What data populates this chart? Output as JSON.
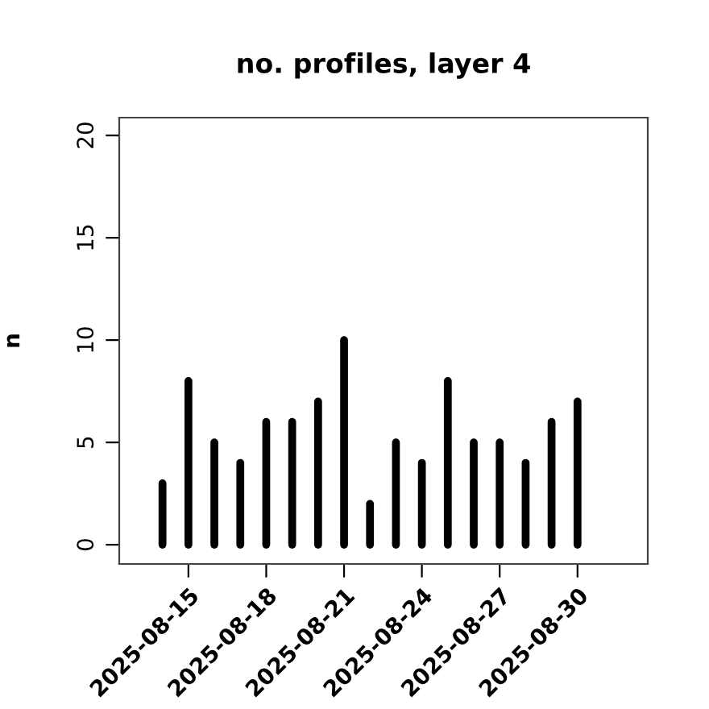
{
  "chart_data": {
    "type": "bar",
    "title": "no. profiles, layer 4",
    "ylabel": "n",
    "x": [
      "2025-08-14",
      "2025-08-15",
      "2025-08-16",
      "2025-08-17",
      "2025-08-18",
      "2025-08-19",
      "2025-08-20",
      "2025-08-21",
      "2025-08-22",
      "2025-08-23",
      "2025-08-24",
      "2025-08-25",
      "2025-08-26",
      "2025-08-27",
      "2025-08-28",
      "2025-08-29",
      "2025-08-30"
    ],
    "values": [
      3,
      8,
      5,
      4,
      6,
      6,
      7,
      10,
      2,
      5,
      4,
      8,
      5,
      5,
      4,
      6,
      7
    ],
    "color": "#000000",
    "xlim": [
      "2025-08-12T08:00",
      "2025-09-01T17:00"
    ],
    "xticks": [
      {
        "value": "2025-08-15",
        "label": "2025-08-15"
      },
      {
        "value": "2025-08-18",
        "label": "2025-08-18"
      },
      {
        "value": "2025-08-21",
        "label": "2025-08-21"
      },
      {
        "value": "2025-08-24",
        "label": "2025-08-24"
      },
      {
        "value": "2025-08-27",
        "label": "2025-08-27"
      },
      {
        "value": "2025-08-30",
        "label": "2025-08-30"
      }
    ],
    "ylim": [
      -0.94,
      20.87
    ],
    "yticks": [
      0,
      5,
      10,
      15,
      20
    ],
    "grid": false
  }
}
